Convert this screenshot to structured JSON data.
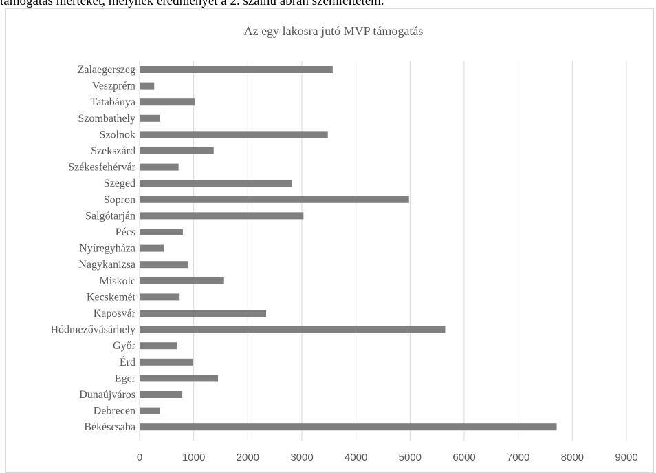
{
  "document": {
    "top_text": "támogatás mértékét, melynek eredményét a 2. számú ábrán szemléltetem."
  },
  "chart_data": {
    "type": "bar",
    "orientation": "horizontal",
    "title": "Az egy lakosra jutó MVP támogatás",
    "xlabel": "",
    "ylabel": "",
    "xlim": [
      0,
      9000
    ],
    "x_ticks": [
      0,
      1000,
      2000,
      3000,
      4000,
      5000,
      6000,
      7000,
      8000,
      9000
    ],
    "grid": "vertical",
    "legend": "none",
    "bar_color": "#7f7f7f",
    "grid_color": "#d9d9d9",
    "categories": [
      "Zalaegerszeg",
      "Veszprém",
      "Tatabánya",
      "Szombathely",
      "Szolnok",
      "Szekszárd",
      "Székesfehérvár",
      "Szeged",
      "Sopron",
      "Salgótarján",
      "Pécs",
      "Nyíregyháza",
      "Nagykanizsa",
      "Miskolc",
      "Kecskemét",
      "Kaposvár",
      "Hódmezővásárhely",
      "Győr",
      "Érd",
      "Eger",
      "Dunaújváros",
      "Debrecen",
      "Békéscsaba"
    ],
    "values": [
      3570,
      270,
      1020,
      380,
      3480,
      1370,
      720,
      2810,
      4980,
      3030,
      800,
      450,
      900,
      1560,
      740,
      2340,
      5650,
      690,
      980,
      1450,
      790,
      380,
      7710
    ]
  }
}
